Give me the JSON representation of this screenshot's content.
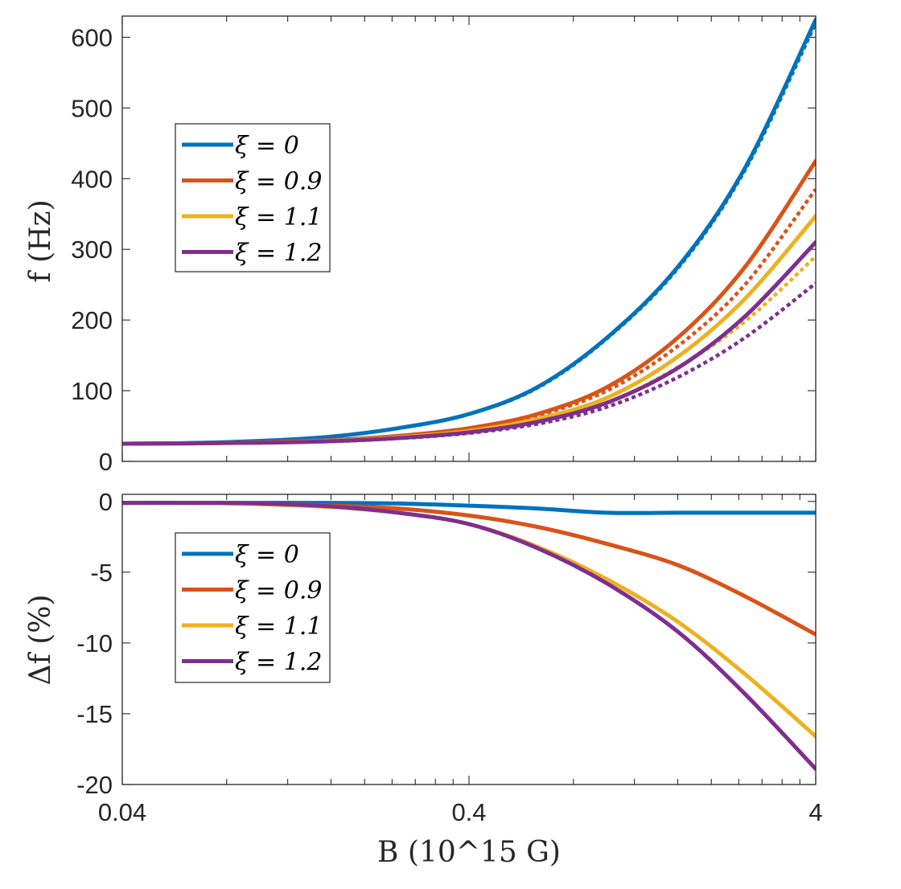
{
  "chart_data": [
    {
      "type": "line",
      "panel": "top",
      "ylabel": "f (Hz)",
      "xlabel": "",
      "xscale": "log",
      "xlim": [
        0.04,
        4
      ],
      "ylim": [
        0,
        630
      ],
      "yticks": [
        0,
        100,
        200,
        300,
        400,
        500,
        600
      ],
      "ytick_labels": [
        "0",
        "100",
        "200",
        "300",
        "400",
        "500",
        "600"
      ],
      "legend_position": "upper-left",
      "x": [
        0.04,
        0.063,
        0.1,
        0.16,
        0.25,
        0.4,
        0.63,
        1.0,
        1.6,
        2.5,
        4.0
      ],
      "series": [
        {
          "name": "ξ = 0",
          "style": "solid",
          "color": "#0072BD",
          "values": [
            25,
            26,
            29,
            35,
            47,
            67,
            105,
            175,
            275,
            415,
            625
          ]
        },
        {
          "name": "ξ = 0.9",
          "style": "solid",
          "color": "#D95319",
          "values": [
            25,
            25.5,
            27,
            30,
            36,
            47,
            67,
            105,
            175,
            275,
            425
          ]
        },
        {
          "name": "ξ = 1.1",
          "style": "solid",
          "color": "#EDB120",
          "values": [
            25,
            25.5,
            26.5,
            29,
            34,
            43,
            60,
            90,
            148,
            230,
            347
          ]
        },
        {
          "name": "ξ = 1.2",
          "style": "solid",
          "color": "#7E2F8E",
          "values": [
            25,
            25.5,
            26.5,
            28.5,
            33,
            41,
            56,
            83,
            132,
            205,
            310
          ]
        },
        {
          "name": "ξ = 0 (dotted)",
          "style": "dotted",
          "color": "#0072BD",
          "values": [
            25,
            26,
            29,
            35,
            47,
            67,
            104,
            174,
            273,
            412,
            620
          ]
        },
        {
          "name": "ξ = 0.9 (dotted)",
          "style": "dotted",
          "color": "#D95319",
          "values": [
            25,
            25.5,
            27,
            30,
            35.5,
            46,
            65,
            100,
            163,
            250,
            385
          ]
        },
        {
          "name": "ξ = 1.1 (dotted)",
          "style": "dotted",
          "color": "#EDB120",
          "values": [
            25,
            25.5,
            26.5,
            28.8,
            33.5,
            42,
            57,
            83,
            133,
            198,
            290
          ]
        },
        {
          "name": "ξ = 1.2 (dotted)",
          "style": "dotted",
          "color": "#7E2F8E",
          "values": [
            25,
            25.5,
            26.5,
            28.3,
            32.5,
            40,
            53,
            77,
            119,
            175,
            252
          ]
        }
      ]
    },
    {
      "type": "line",
      "panel": "bottom",
      "ylabel": "Δf (%)",
      "xlabel": "B (10^15 G)",
      "xscale": "log",
      "xlim": [
        0.04,
        4
      ],
      "ylim": [
        -20,
        0.5
      ],
      "xticks": [
        0.04,
        0.4,
        4
      ],
      "xtick_labels": [
        "0.04",
        "0.4",
        "4"
      ],
      "yticks": [
        -20,
        -15,
        -10,
        -5,
        0
      ],
      "ytick_labels": [
        "-20",
        "-15",
        "-10",
        "-5",
        "0"
      ],
      "legend_position": "middle-left",
      "x": [
        0.04,
        0.063,
        0.1,
        0.16,
        0.25,
        0.4,
        0.63,
        1.0,
        1.6,
        2.5,
        4.0
      ],
      "series": [
        {
          "name": "ξ = 0",
          "style": "solid",
          "color": "#0072BD",
          "values": [
            -0.1,
            -0.1,
            -0.1,
            -0.1,
            -0.15,
            -0.3,
            -0.5,
            -0.8,
            -0.8,
            -0.8,
            -0.8
          ]
        },
        {
          "name": "ξ = 0.9",
          "style": "solid",
          "color": "#D95319",
          "values": [
            -0.1,
            -0.1,
            -0.15,
            -0.3,
            -0.5,
            -1.0,
            -1.8,
            -3.0,
            -4.5,
            -6.7,
            -9.4
          ]
        },
        {
          "name": "ξ = 1.1",
          "style": "solid",
          "color": "#EDB120",
          "values": [
            -0.1,
            -0.1,
            -0.2,
            -0.4,
            -0.8,
            -1.6,
            -3.2,
            -5.5,
            -8.5,
            -12.2,
            -16.6
          ]
        },
        {
          "name": "ξ = 1.2",
          "style": "solid",
          "color": "#7E2F8E",
          "values": [
            -0.1,
            -0.1,
            -0.15,
            -0.35,
            -0.8,
            -1.6,
            -3.3,
            -5.8,
            -9.2,
            -13.6,
            -18.9
          ]
        }
      ]
    }
  ],
  "legend": {
    "top": [
      "ξ = 0",
      "ξ = 0.9",
      "ξ = 1.1",
      "ξ = 1.2"
    ],
    "bottom": [
      "ξ = 0",
      "ξ = 0.9",
      "ξ = 1.1",
      "ξ = 1.2"
    ]
  }
}
